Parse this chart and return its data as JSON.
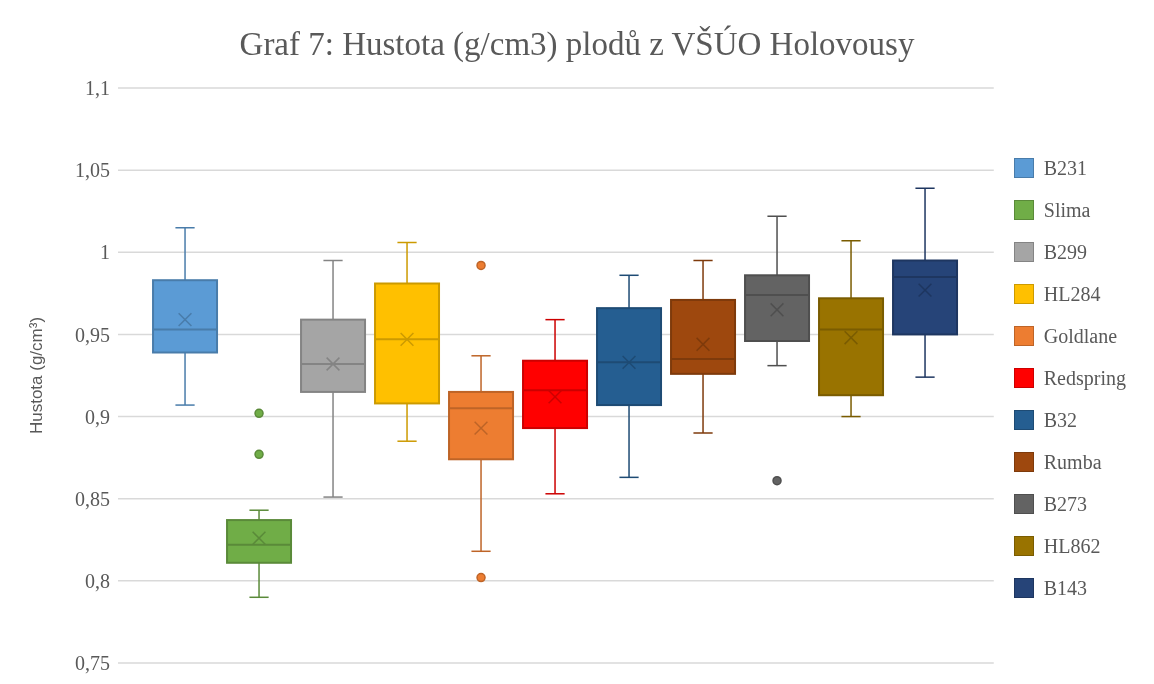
{
  "chart_data": {
    "type": "box",
    "title": "Graf 7: Hustota (g/cm3) plodů z VŠÚO Holovousy",
    "ylabel": "Hustota (g/cm³)",
    "categories": [
      null
    ],
    "ylim": [
      0.75,
      1.1
    ],
    "yticks": [
      {
        "value": 0.75,
        "label": "0,75"
      },
      {
        "value": 0.8,
        "label": "0,8"
      },
      {
        "value": 0.85,
        "label": "0,85"
      },
      {
        "value": 0.9,
        "label": "0,9"
      },
      {
        "value": 0.95,
        "label": "0,95"
      },
      1,
      {
        "value": 1.05,
        "label": "1,05"
      },
      {
        "value": 1.1,
        "label": "1,1"
      }
    ],
    "grid": "y",
    "legend": "right",
    "series": [
      {
        "name": "B231",
        "color": "#5b9bd5",
        "boxes": [
          {
            "low": 0.907,
            "q1": 0.939,
            "median": 0.953,
            "q3": 0.983,
            "high": 1.015,
            "mean": 0.959
          }
        ]
      },
      {
        "name": "Slima",
        "color": "#70ad47",
        "boxes": [
          {
            "low": 0.79,
            "q1": 0.811,
            "median": 0.822,
            "q3": 0.837,
            "high": 0.843,
            "mean": 0.826,
            "outliers": [
              0.902,
              0.877
            ]
          }
        ]
      },
      {
        "name": "B299",
        "color": "#a5a5a5",
        "boxes": [
          {
            "low": 0.851,
            "q1": 0.915,
            "median": 0.932,
            "q3": 0.959,
            "high": 0.995,
            "mean": 0.932
          }
        ]
      },
      {
        "name": "HL284",
        "color": "#ffc000",
        "boxes": [
          {
            "low": 0.885,
            "q1": 0.908,
            "median": 0.947,
            "q3": 0.981,
            "high": 1.006,
            "mean": 0.947
          }
        ]
      },
      {
        "name": "Goldlane",
        "color": "#ed7d31",
        "boxes": [
          {
            "low": 0.818,
            "q1": 0.874,
            "median": 0.905,
            "q3": 0.915,
            "high": 0.937,
            "mean": 0.893,
            "outliers": [
              0.992,
              0.802
            ]
          }
        ]
      },
      {
        "name": "Redspring",
        "color": "#ff0000",
        "boxes": [
          {
            "low": 0.853,
            "q1": 0.893,
            "median": 0.916,
            "q3": 0.934,
            "high": 0.959,
            "mean": 0.912
          }
        ]
      },
      {
        "name": "B32",
        "color": "#255e91",
        "boxes": [
          {
            "low": 0.863,
            "q1": 0.907,
            "median": 0.933,
            "q3": 0.966,
            "high": 0.986,
            "mean": 0.933
          }
        ]
      },
      {
        "name": "Rumba",
        "color": "#9e480e",
        "boxes": [
          {
            "low": 0.89,
            "q1": 0.926,
            "median": 0.935,
            "q3": 0.971,
            "high": 0.995,
            "mean": 0.944
          }
        ]
      },
      {
        "name": "B273",
        "color": "#636363",
        "boxes": [
          {
            "low": 0.931,
            "q1": 0.946,
            "median": 0.974,
            "q3": 0.986,
            "high": 1.022,
            "mean": 0.965,
            "outliers": [
              0.861
            ]
          }
        ]
      },
      {
        "name": "HL862",
        "color": "#997300",
        "boxes": [
          {
            "low": 0.9,
            "q1": 0.913,
            "median": 0.953,
            "q3": 0.972,
            "high": 1.007,
            "mean": 0.948
          }
        ]
      },
      {
        "name": "B143",
        "color": "#264478",
        "boxes": [
          {
            "low": 0.924,
            "q1": 0.95,
            "median": 0.985,
            "q3": 0.995,
            "high": 1.039,
            "mean": 0.977
          }
        ]
      }
    ]
  }
}
